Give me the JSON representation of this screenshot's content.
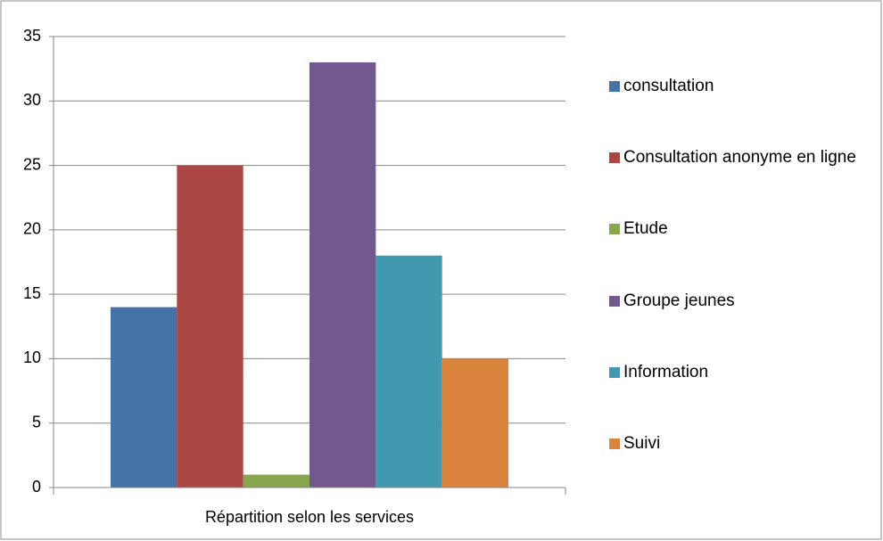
{
  "chart_data": {
    "type": "bar",
    "categories": [
      "Répartition selon les services"
    ],
    "series": [
      {
        "name": "consultation",
        "color": "#4572a7",
        "values": [
          14
        ]
      },
      {
        "name": "Consultation anonyme en ligne",
        "color": "#aa4643",
        "values": [
          25
        ]
      },
      {
        "name": "Etude",
        "color": "#89a54e",
        "values": [
          1
        ]
      },
      {
        "name": "Groupe jeunes",
        "color": "#71588f",
        "values": [
          33
        ]
      },
      {
        "name": "Information",
        "color": "#4198af",
        "values": [
          18
        ]
      },
      {
        "name": "Suivi",
        "color": "#db843d",
        "values": [
          10
        ]
      }
    ],
    "ylim": [
      0,
      35
    ],
    "yticks": [
      0,
      5,
      10,
      15,
      20,
      25,
      30,
      35
    ],
    "grid": true,
    "legend": "right"
  }
}
